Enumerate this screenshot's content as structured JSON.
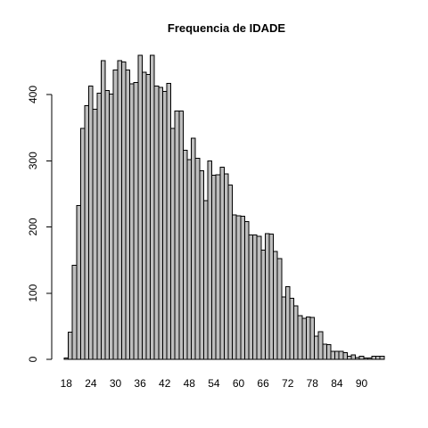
{
  "chart_data": {
    "type": "bar",
    "title": "Frequencia de IDADE",
    "xlabel": "",
    "ylabel": "",
    "bar_fill": "#bebebe",
    "bar_stroke": "#000000",
    "ylim": [
      0,
      470
    ],
    "y_ticks": [
      0,
      100,
      200,
      300,
      400
    ],
    "x_ticks": [
      18,
      24,
      30,
      36,
      42,
      48,
      54,
      60,
      66,
      72,
      78,
      84,
      90
    ],
    "categories": [
      18,
      19,
      20,
      21,
      22,
      23,
      24,
      25,
      26,
      27,
      28,
      29,
      30,
      31,
      32,
      33,
      34,
      35,
      36,
      37,
      38,
      39,
      40,
      41,
      42,
      43,
      44,
      45,
      46,
      47,
      48,
      49,
      50,
      51,
      52,
      53,
      54,
      55,
      56,
      57,
      58,
      59,
      60,
      61,
      62,
      63,
      64,
      65,
      66,
      67,
      68,
      69,
      70,
      71,
      72,
      73,
      74,
      75,
      76,
      77,
      78,
      79,
      80,
      81,
      82,
      83,
      84,
      85,
      86,
      87,
      88,
      89,
      90,
      91,
      92,
      93,
      94,
      95
    ],
    "values": [
      2,
      41,
      142,
      232,
      349,
      383,
      413,
      378,
      402,
      451,
      406,
      401,
      437,
      451,
      449,
      437,
      416,
      418,
      459,
      434,
      430,
      459,
      413,
      411,
      405,
      417,
      349,
      375,
      375,
      316,
      302,
      334,
      304,
      285,
      240,
      300,
      278,
      279,
      290,
      280,
      263,
      218,
      217,
      216,
      208,
      188,
      188,
      186,
      165,
      190,
      189,
      163,
      152,
      94,
      110,
      92,
      81,
      66,
      62,
      64,
      63,
      35,
      42,
      23,
      22,
      12,
      12,
      12,
      10,
      5,
      7,
      3,
      5,
      2,
      2,
      5,
      5,
      5
    ]
  }
}
